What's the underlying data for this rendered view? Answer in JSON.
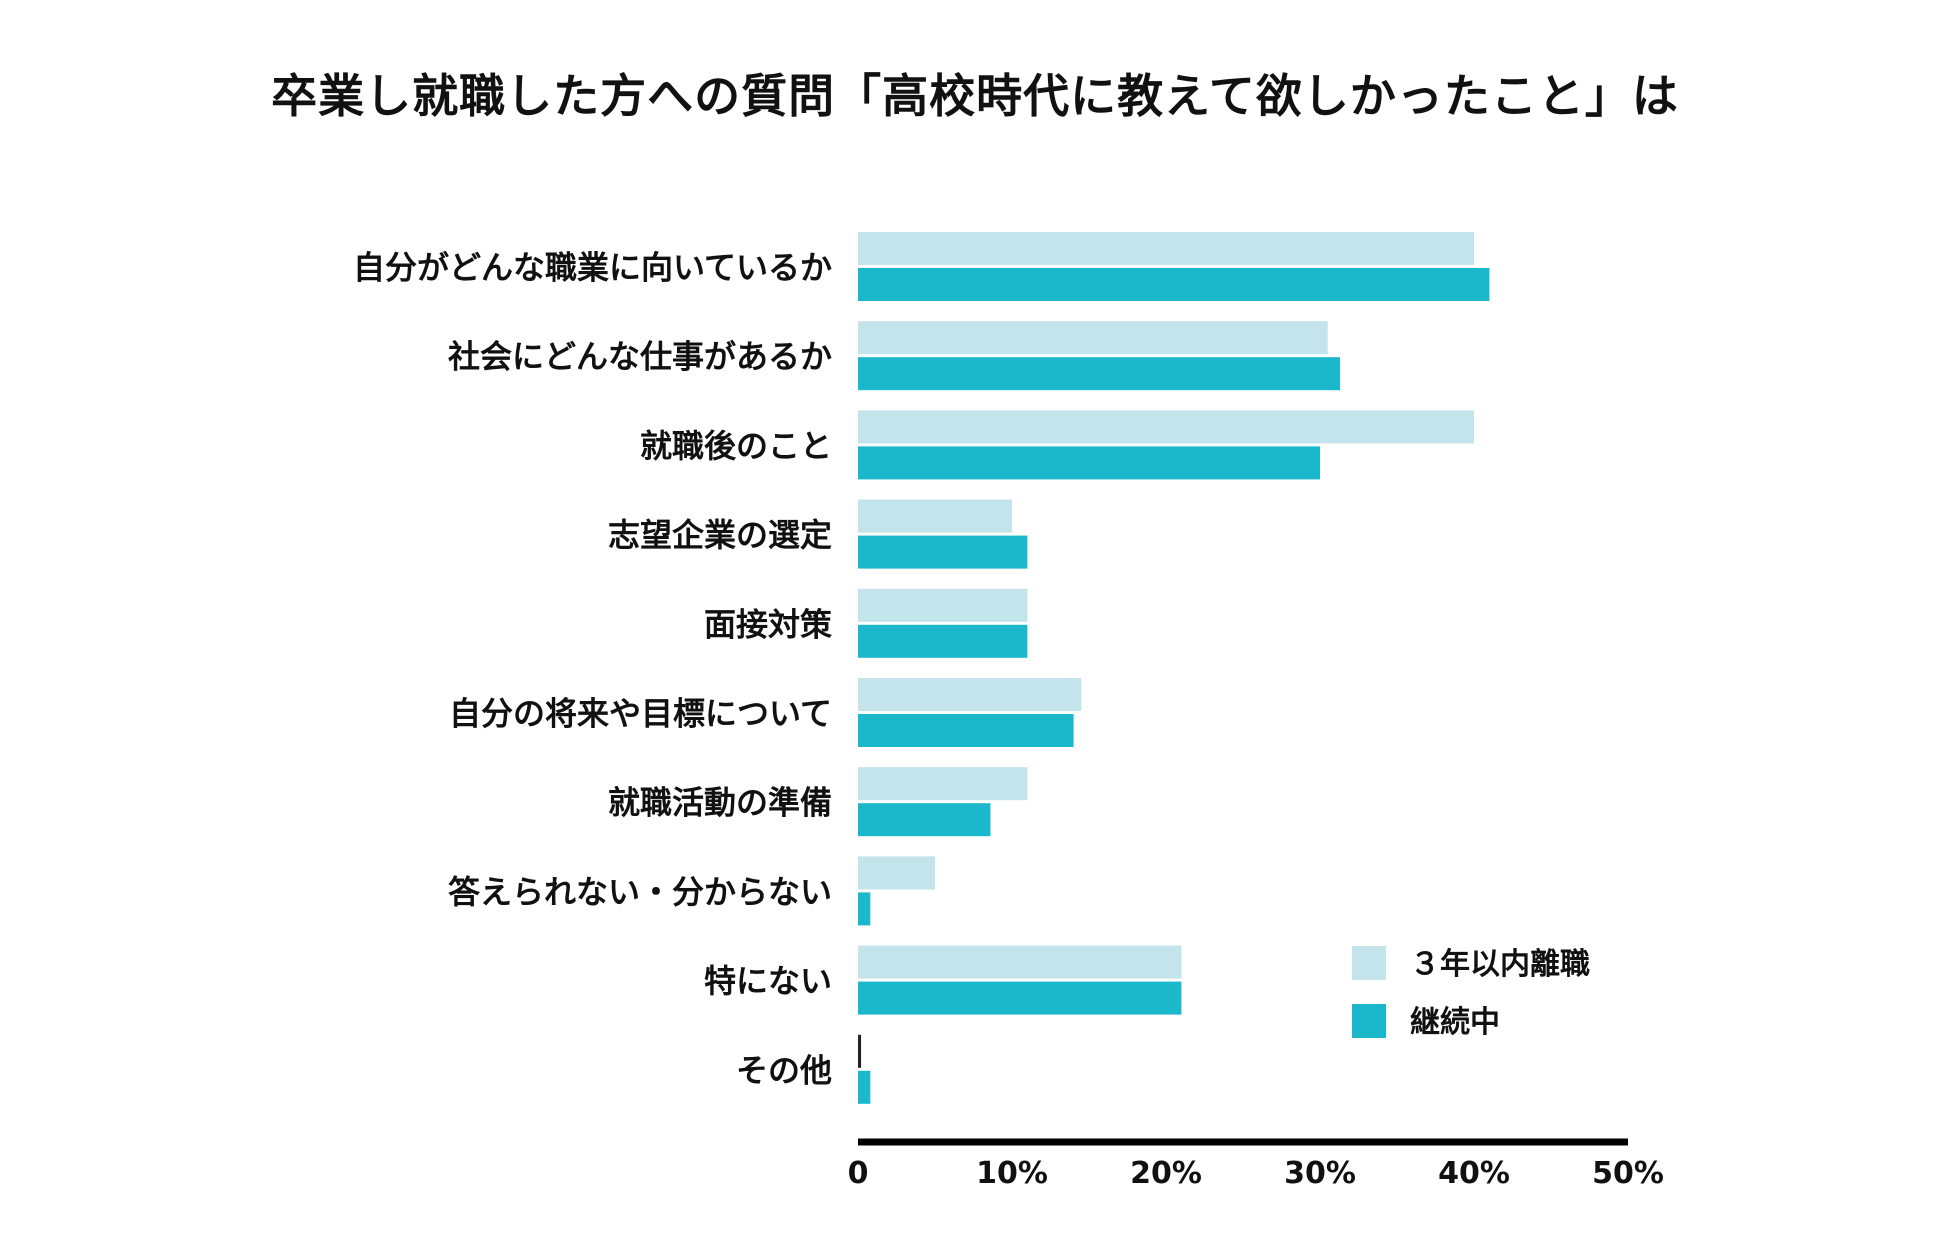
{
  "chart_data": {
    "type": "bar",
    "orientation": "horizontal",
    "title": "卒業し就職した方への質問「高校時代に教えて欲しかったこと」は",
    "categories": [
      "自分がどんな職業に向いているか",
      "社会にどんな仕事があるか",
      "就職後のこと",
      "志望企業の選定",
      "面接対策",
      "自分の将来や目標について",
      "就職活動の準備",
      "答えられない・分からない",
      "特にない",
      "その他"
    ],
    "series": [
      {
        "name": "３年以内離職",
        "color": "#c3e4eb",
        "values": [
          40,
          30.5,
          40,
          10,
          11,
          14.5,
          11,
          5,
          21,
          0.2
        ]
      },
      {
        "name": "継続中",
        "color": "#1bb8cc",
        "values": [
          41,
          31.3,
          30,
          11,
          11,
          14,
          8.6,
          0.8,
          21,
          0.8
        ]
      }
    ],
    "xlim": [
      0,
      50
    ],
    "xticks": [
      0,
      10,
      20,
      30,
      40,
      50
    ],
    "xtick_labels": [
      "0",
      "10%",
      "20%",
      "30%",
      "40%",
      "50%"
    ],
    "xlabel": "",
    "ylabel": "",
    "legend_position": "bottom-right",
    "axis_color": "#000000"
  }
}
